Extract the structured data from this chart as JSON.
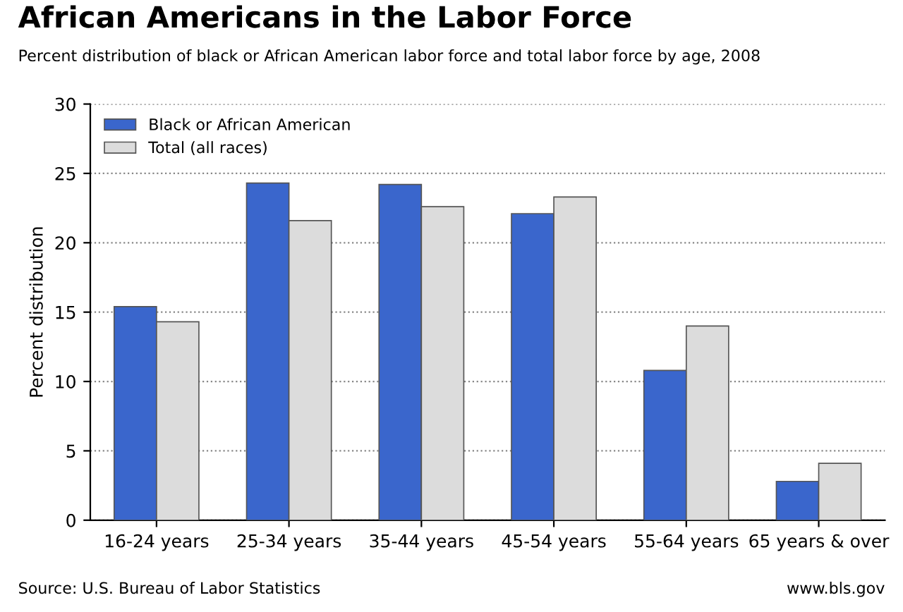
{
  "chart_data": {
    "type": "bar",
    "title": "African Americans in the Labor Force",
    "subtitle": "Percent distribution of black or African American labor force and total labor force by age, 2008",
    "ylabel": "Percent distribution",
    "categories": [
      "16-24 years",
      "25-34 years",
      "35-44 years",
      "45-54 years",
      "55-64 years",
      "65 years & over"
    ],
    "series": [
      {
        "name": "Black or African American",
        "color": "#3a66cc",
        "values": [
          15.4,
          24.3,
          24.2,
          22.1,
          10.8,
          2.8
        ]
      },
      {
        "name": "Total (all races)",
        "color": "#dcdcdc",
        "values": [
          14.3,
          21.6,
          22.6,
          23.3,
          14.0,
          4.1
        ]
      }
    ],
    "ylim": [
      0,
      30
    ],
    "yticks": [
      0,
      5,
      10,
      15,
      20,
      25,
      30
    ],
    "grid": "y",
    "legend": "top left",
    "annotations": [
      "Source: U.S. Bureau of Labor Statistics",
      "www.bls.gov"
    ]
  }
}
